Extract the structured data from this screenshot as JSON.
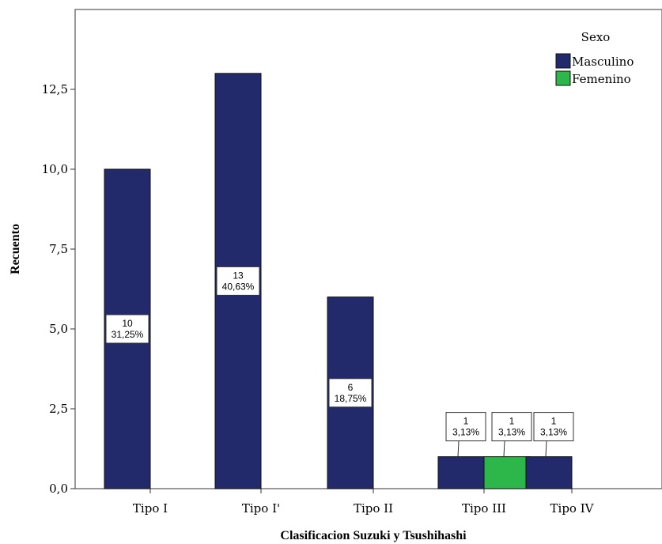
{
  "chart_data": {
    "type": "bar",
    "xlabel": "Clasificacion Suzuki y Tsushihashi",
    "ylabel": "Recuento",
    "ylim": [
      0,
      15
    ],
    "yticks": [
      "0,0",
      "2,5",
      "5,0",
      "7,5",
      "10,0",
      "12,5"
    ],
    "ytick_values": [
      0,
      2.5,
      5,
      7.5,
      10,
      12.5
    ],
    "categories": [
      "Tipo I",
      "Tipo I'",
      "Tipo II",
      "Tipo III",
      "Tipo IV"
    ],
    "legend": {
      "title": "Sexo",
      "position": "top-right"
    },
    "series": [
      {
        "name": "Masculino",
        "color": "#232a6c",
        "values": [
          10,
          13,
          6,
          1,
          1
        ],
        "labels": [
          [
            "10",
            "31,25%"
          ],
          [
            "13",
            "40,63%"
          ],
          [
            "6",
            "18,75%"
          ],
          [
            "1",
            "3,13%"
          ],
          [
            "1",
            "3,13%"
          ]
        ]
      },
      {
        "name": "Femenino",
        "color": "#2db64a",
        "values": [
          0,
          0,
          0,
          1,
          0
        ],
        "labels": [
          null,
          null,
          null,
          [
            "1",
            "3,13%"
          ],
          null
        ]
      }
    ]
  }
}
